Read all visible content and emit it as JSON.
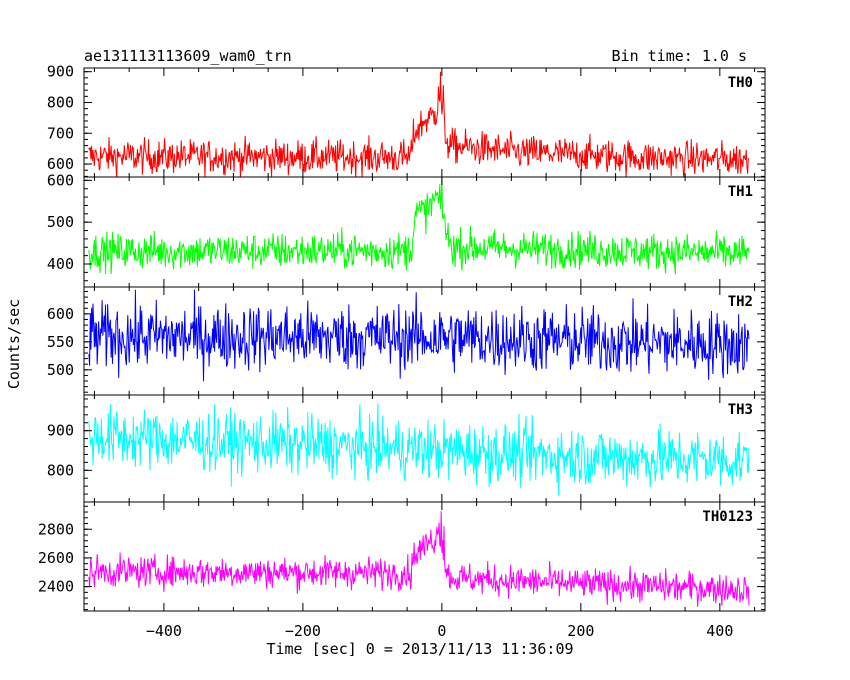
{
  "header": {
    "title": "ae131113113609_wam0_trn",
    "bin_time": "Bin time: 1.0 s"
  },
  "chart_data": {
    "type": "line",
    "xlabel": "Time [sec] 0 = 2013/11/13 11:36:09",
    "ylabel": "Counts/sec",
    "xlim": [
      -515,
      465
    ],
    "x_ticks": [
      -400,
      -200,
      0,
      200,
      400
    ],
    "x_tick_labels": [
      "−400",
      "−200",
      "0",
      "200",
      "400"
    ],
    "x_range_of_data": [
      -508,
      442
    ],
    "panels": [
      {
        "name": "TH0",
        "color": "#ff0000",
        "ylim": [
          558,
          912
        ],
        "y_ticks": [
          600,
          700,
          800,
          900
        ],
        "baseline": [
          [
            -508,
            625
          ],
          [
            -45,
            622
          ],
          [
            -40,
            700
          ],
          [
            -25,
            740
          ],
          [
            -10,
            760
          ],
          [
            -3,
            820
          ],
          [
            0,
            780
          ],
          [
            5,
            700
          ],
          [
            10,
            660
          ],
          [
            100,
            640
          ],
          [
            300,
            620
          ],
          [
            442,
            615
          ]
        ],
        "noise": 28,
        "spike": [
          [
            -5,
            860
          ],
          [
            -2,
            905
          ],
          [
            2,
            850
          ]
        ]
      },
      {
        "name": "TH1",
        "color": "#00ff00",
        "ylim": [
          345,
          608
        ],
        "y_ticks": [
          400,
          500,
          600
        ],
        "baseline": [
          [
            -508,
            430
          ],
          [
            -45,
            432
          ],
          [
            -38,
            520
          ],
          [
            -20,
            530
          ],
          [
            -8,
            560
          ],
          [
            0,
            545
          ],
          [
            8,
            460
          ],
          [
            15,
            440
          ],
          [
            300,
            430
          ],
          [
            442,
            425
          ]
        ],
        "noise": 22,
        "spike": [
          [
            -3,
            585
          ],
          [
            0,
            600
          ]
        ]
      },
      {
        "name": "TH2",
        "color": "#0000ff",
        "ylim": [
          455,
          648
        ],
        "y_ticks": [
          500,
          550,
          600
        ],
        "baseline": [
          [
            -508,
            560
          ],
          [
            0,
            558
          ],
          [
            442,
            545
          ]
        ],
        "noise": 30,
        "spike": []
      },
      {
        "name": "TH3",
        "color": "#00ffff",
        "ylim": [
          720,
          990
        ],
        "y_ticks": [
          800,
          900
        ],
        "baseline": [
          [
            -508,
            885
          ],
          [
            -200,
            865
          ],
          [
            0,
            850
          ],
          [
            200,
            835
          ],
          [
            442,
            825
          ]
        ],
        "noise": 38,
        "spike": []
      },
      {
        "name": "TH0123",
        "color": "#ff00ff",
        "ylim": [
          2230,
          2990
        ],
        "y_ticks": [
          2400,
          2600,
          2800
        ],
        "baseline": [
          [
            -508,
            2505
          ],
          [
            -45,
            2495
          ],
          [
            -40,
            2620
          ],
          [
            -20,
            2700
          ],
          [
            -5,
            2760
          ],
          [
            0,
            2700
          ],
          [
            6,
            2500
          ],
          [
            15,
            2460
          ],
          [
            200,
            2420
          ],
          [
            442,
            2380
          ]
        ],
        "noise": 55,
        "spike": [
          [
            -4,
            2880
          ],
          [
            -1,
            2950
          ],
          [
            3,
            2860
          ]
        ]
      }
    ]
  }
}
